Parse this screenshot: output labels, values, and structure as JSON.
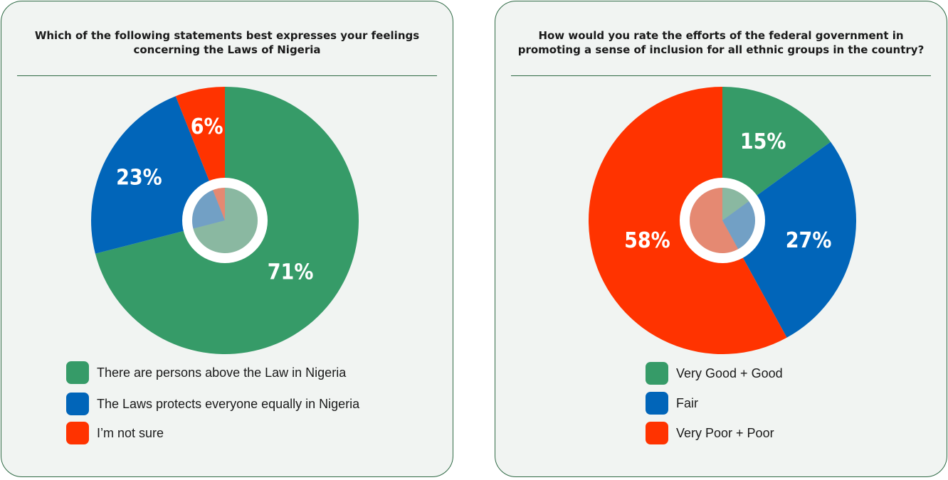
{
  "colors": {
    "green": "#369b68",
    "blue": "#0165b9",
    "red": "#ff3300",
    "card_bg": "#f1f4f2",
    "border": "#2f6a45"
  },
  "chart_data": [
    {
      "type": "pie",
      "title": "Which of the following statements best expresses your feelings\nconcerning the Laws of Nigeria",
      "categories": [
        "There are persons above  the Law in Nigeria",
        "The Laws protects everyone  equally in Nigeria",
        "I’m not sure"
      ],
      "values": [
        71,
        23,
        6
      ],
      "labels": [
        "71%",
        "23%",
        "6%"
      ],
      "colors": [
        "#369b68",
        "#0165b9",
        "#ff3300"
      ],
      "legend": "bottom-left",
      "start": "top",
      "direction": "clockwise"
    },
    {
      "type": "pie",
      "title": "How would you rate the efforts of the federal government in\npromoting a sense of inclusion for all ethnic groups in the country?",
      "categories": [
        "Very Good + Good",
        "Fair",
        "Very Poor + Poor"
      ],
      "values": [
        15,
        27,
        58
      ],
      "labels": [
        "15%",
        "27%",
        "58%"
      ],
      "colors": [
        "#369b68",
        "#0165b9",
        "#ff3300"
      ],
      "legend": "bottom-center",
      "start": "top",
      "direction": "clockwise"
    }
  ]
}
